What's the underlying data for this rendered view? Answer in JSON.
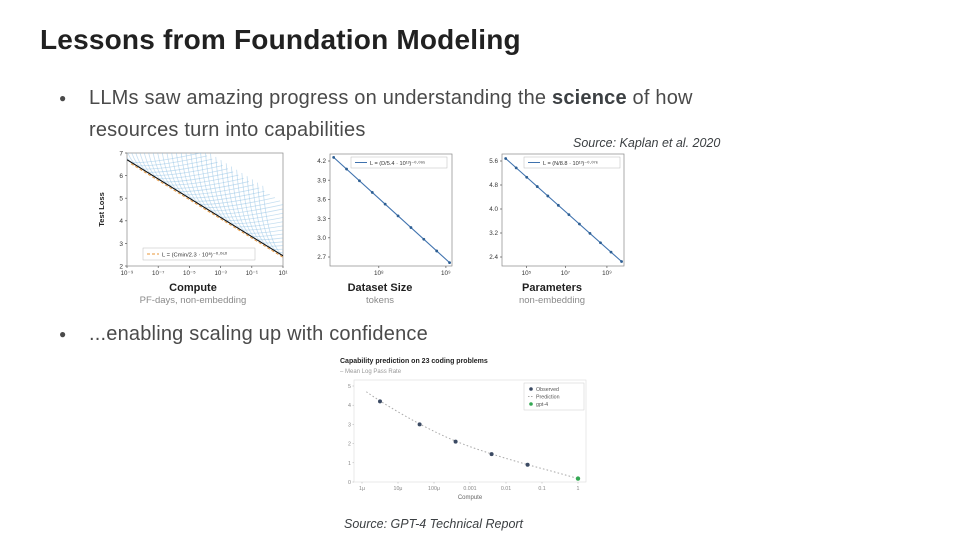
{
  "slide": {
    "title": "Lessons from Foundation Modeling",
    "bullet1": {
      "pre": "LLMs saw amazing progress on understanding the ",
      "bold": "science",
      "post": " of how",
      "line2": "resources turn into capabilities"
    },
    "bullet2": "...enabling scaling up with confidence",
    "kaplan_source": "Source: Kaplan et al. 2020",
    "gpt4_source": "Source: GPT-4 Technical Report"
  },
  "chart_data": [
    {
      "id": "kaplan-compute",
      "type": "line",
      "ylabel": "Test Loss",
      "xlabel": "Compute",
      "xsublabel": "PF-days, non-embedding",
      "legend": "L = (Cmin/2.3 · 10⁸)⁻⁰·⁰⁵⁰",
      "x_ticks": [
        "10⁻⁹",
        "10⁻⁷",
        "10⁻⁵",
        "10⁻³",
        "10⁻¹",
        "10¹"
      ],
      "y_ticks": [
        "7",
        "6",
        "5",
        "4",
        "3",
        "2"
      ],
      "ylim": [
        2,
        7
      ],
      "envelope": {
        "y_left": 6.7,
        "y_right": 2.45
      },
      "num_curves": 30,
      "colors": {
        "curves": "#8ec0e4",
        "envelope": "#111111",
        "fit": "#e8973a"
      }
    },
    {
      "id": "kaplan-dataset-size",
      "type": "line",
      "xlabel": "Dataset Size",
      "xsublabel": "tokens",
      "legend": "L = (D/5.4 · 10¹³)⁻⁰·⁰⁹⁵",
      "x_ticks": [
        "10⁸",
        "10⁹"
      ],
      "x_tick_pos": [
        0.4,
        0.95
      ],
      "y_ticks": [
        "4.2",
        "3.9",
        "3.6",
        "3.3",
        "3.0",
        "2.7"
      ],
      "line": [
        [
          0.03,
          0.03
        ],
        [
          0.98,
          0.97
        ]
      ],
      "n_points": 10,
      "legend_pos": "center",
      "colors": {
        "line": "#3f72ae",
        "points": "#2e5f93"
      }
    },
    {
      "id": "kaplan-parameters",
      "type": "line",
      "xlabel": "Parameters",
      "xsublabel": "non-embedding",
      "legend": "L = (N/8.8 · 10¹³)⁻⁰·⁰⁷⁶",
      "x_ticks": [
        "10⁵",
        "10⁷",
        "10⁹"
      ],
      "x_tick_pos": [
        0.2,
        0.52,
        0.86
      ],
      "y_ticks": [
        "5.6",
        "4.8",
        "4.0",
        "3.2",
        "2.4"
      ],
      "line": [
        [
          0.03,
          0.04
        ],
        [
          0.98,
          0.96
        ]
      ],
      "n_points": 12,
      "legend_pos": "right",
      "colors": {
        "line": "#3f72ae",
        "points": "#2e5f93"
      }
    },
    {
      "id": "gpt4-capability-prediction",
      "type": "scatter",
      "title": "Capability prediction on 23 coding problems",
      "subtitle": "– Mean Log Pass Rate",
      "xlabel": "Compute",
      "x_ticks": [
        "1μ",
        "10μ",
        "100μ",
        "0.001",
        "0.01",
        "0.1",
        "1"
      ],
      "y_ticks": [
        "0",
        "1",
        "2",
        "3",
        "4",
        "5"
      ],
      "ylim": [
        0,
        5
      ],
      "legend": [
        "Observed",
        "Prediction",
        "gpt-4"
      ],
      "observed": [
        [
          0.5,
          4.2
        ],
        [
          1.6,
          3.0
        ],
        [
          2.6,
          2.1
        ],
        [
          3.6,
          1.45
        ],
        [
          4.6,
          0.9
        ]
      ],
      "gpt4_point": [
        6,
        0.18
      ],
      "prediction": [
        [
          0.12,
          4.7
        ],
        [
          0.5,
          4.2
        ],
        [
          1.6,
          3.0
        ],
        [
          2.6,
          2.1
        ],
        [
          3.6,
          1.45
        ],
        [
          4.6,
          0.9
        ],
        [
          5.3,
          0.55
        ],
        [
          6,
          0.18
        ]
      ],
      "colors": {
        "observed": "#3b4a63",
        "prediction": "#aaaaaa",
        "gpt4": "#34a853"
      }
    }
  ]
}
